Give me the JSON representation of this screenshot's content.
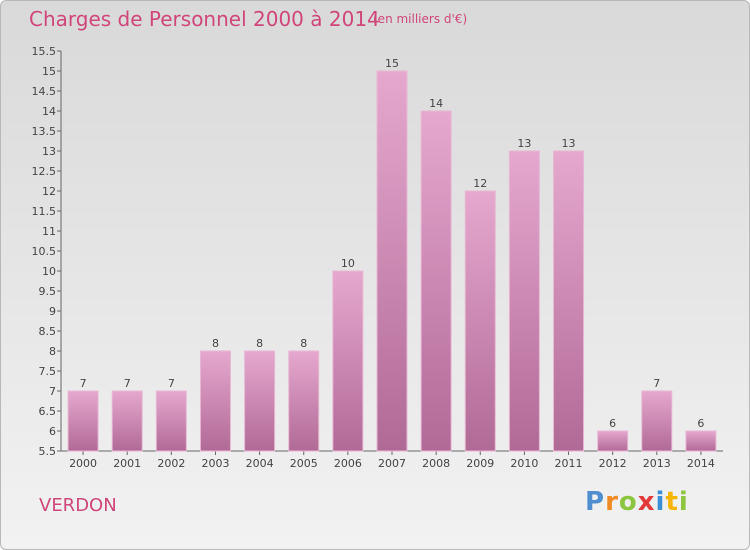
{
  "header": {
    "title": "Charges de Personnel 2000 à 2014",
    "subtitle": "(en milliers d'€)"
  },
  "footer": {
    "commune": "VERDON",
    "logo_text": "Proxiti"
  },
  "colors": {
    "title": "#d0467a",
    "bar_top": "#e6a8cf",
    "bar_bottom": "#b06a96",
    "bar_stroke": "#e8b7d3"
  },
  "chart_data": {
    "type": "bar",
    "title": "Charges de Personnel 2000 à 2014",
    "subtitle": "(en milliers d'€)",
    "categories": [
      "2000",
      "2001",
      "2002",
      "2003",
      "2004",
      "2005",
      "2006",
      "2007",
      "2008",
      "2009",
      "2010",
      "2011",
      "2012",
      "2013",
      "2014"
    ],
    "values": [
      7,
      7,
      7,
      8,
      8,
      8,
      10,
      15,
      14,
      12,
      13,
      13,
      6,
      7,
      6
    ],
    "ylim": [
      5.5,
      15.5
    ],
    "yticks": [
      "5.5",
      "6",
      "6.5",
      "7",
      "7.5",
      "8",
      "8.5",
      "9",
      "9.5",
      "10",
      "10.5",
      "11",
      "11.5",
      "12",
      "12.5",
      "13",
      "13.5",
      "14",
      "14.5",
      "15",
      "15.5"
    ],
    "grid": false,
    "legend": "none"
  }
}
